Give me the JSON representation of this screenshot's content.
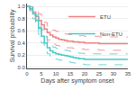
{
  "chart_data": {
    "type": "step",
    "xlabel": "Days after symptom onset",
    "ylabel": "Survival probability",
    "xlim": [
      0,
      35
    ],
    "ylim": [
      -0.02,
      1.05
    ],
    "xticks": [
      0,
      5,
      10,
      15,
      20,
      25,
      30,
      35
    ],
    "yticks": [
      {
        "value": 0.0,
        "label": "0.0"
      },
      0.2,
      0.4,
      0.6,
      0.8,
      {
        "value": 1.0,
        "label": "1.0"
      }
    ],
    "grid": "y",
    "legend": "upper right",
    "series": [
      {
        "name": "ETU",
        "color": "#F08080",
        "x": [
          0,
          1,
          2,
          3,
          4,
          5,
          6,
          7,
          8,
          9,
          10,
          11,
          12,
          13,
          14,
          16,
          18,
          20,
          25,
          30,
          35
        ],
        "values": [
          1.0,
          0.97,
          0.91,
          0.84,
          0.77,
          0.7,
          0.63,
          0.57,
          0.53,
          0.5,
          0.48,
          0.46,
          0.45,
          0.44,
          0.43,
          0.42,
          0.41,
          0.4,
          0.39,
          0.39,
          0.39
        ],
        "ci_upper": [
          1.0,
          1.0,
          0.98,
          0.94,
          0.88,
          0.81,
          0.74,
          0.68,
          0.64,
          0.61,
          0.59,
          0.57,
          0.56,
          0.55,
          0.54,
          0.53,
          0.52,
          0.51,
          0.5,
          0.5,
          0.5
        ],
        "ci_lower": [
          1.0,
          0.94,
          0.85,
          0.75,
          0.66,
          0.58,
          0.51,
          0.45,
          0.41,
          0.38,
          0.36,
          0.35,
          0.34,
          0.33,
          0.32,
          0.31,
          0.3,
          0.29,
          0.28,
          0.28,
          0.28
        ]
      },
      {
        "name": "Non-ETU",
        "color": "#48C9C8",
        "x": [
          0,
          1,
          2,
          3,
          4,
          5,
          6,
          7,
          8,
          9,
          10,
          11,
          12,
          13,
          14,
          15,
          16,
          17,
          18,
          19,
          20,
          22,
          25,
          30,
          35
        ],
        "values": [
          1.0,
          0.96,
          0.88,
          0.77,
          0.64,
          0.51,
          0.4,
          0.32,
          0.27,
          0.24,
          0.22,
          0.21,
          0.2,
          0.19,
          0.18,
          0.17,
          0.16,
          0.15,
          0.14,
          0.14,
          0.13,
          0.13,
          0.13,
          0.13,
          0.13
        ],
        "ci_upper": [
          1.0,
          1.0,
          0.96,
          0.87,
          0.75,
          0.62,
          0.51,
          0.42,
          0.37,
          0.33,
          0.31,
          0.3,
          0.29,
          0.28,
          0.27,
          0.26,
          0.25,
          0.24,
          0.23,
          0.23,
          0.22,
          0.22,
          0.22,
          0.22,
          0.22
        ],
        "ci_lower": [
          1.0,
          0.92,
          0.8,
          0.67,
          0.54,
          0.4,
          0.29,
          0.22,
          0.17,
          0.14,
          0.13,
          0.12,
          0.11,
          0.1,
          0.09,
          0.08,
          0.07,
          0.06,
          0.05,
          0.05,
          0.04,
          0.04,
          0.04,
          0.04,
          0.04
        ]
      }
    ]
  }
}
